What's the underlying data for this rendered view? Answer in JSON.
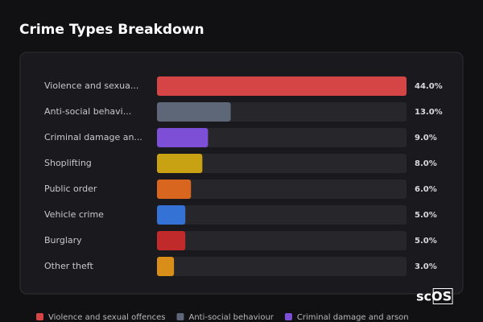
{
  "chart_data": {
    "type": "bar",
    "orientation": "horizontal",
    "title": "Crime Types Breakdown",
    "categories": [
      "Violence and sexua...",
      "Anti-social behavi...",
      "Criminal damage an...",
      "Shoplifting",
      "Public order",
      "Vehicle crime",
      "Burglary",
      "Other theft"
    ],
    "values": [
      44,
      13,
      9,
      8,
      6,
      5,
      5,
      3
    ],
    "value_labels": [
      "44.0%",
      "13.0%",
      "9.0%",
      "8.0%",
      "6.0%",
      "5.0%",
      "5.0%",
      "3.0%"
    ],
    "colors": [
      "#d64545",
      "#5d6778",
      "#7c4fd6",
      "#c9a213",
      "#d9661f",
      "#3572d6",
      "#c02a2a",
      "#d98e1a"
    ],
    "legend": [
      {
        "name": "Violence and sexual offences",
        "color": "#d64545"
      },
      {
        "name": "Anti-social behaviour",
        "color": "#5d6778"
      },
      {
        "name": "Criminal damage and arson",
        "color": "#7c4fd6"
      }
    ],
    "watermark": "scOS"
  }
}
